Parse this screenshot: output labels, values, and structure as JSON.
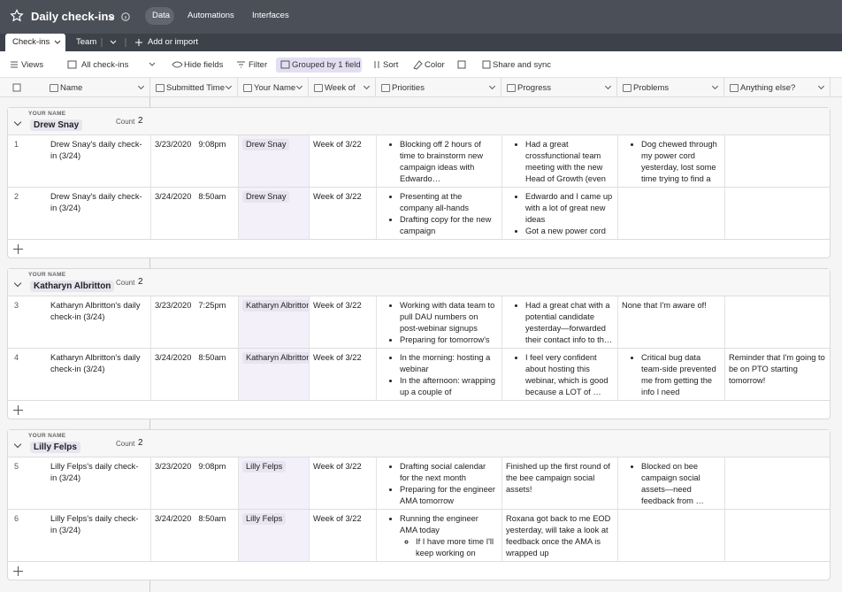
{
  "header": {
    "title": "Daily check-ins",
    "nav": [
      "Data",
      "Automations",
      "Interfaces"
    ]
  },
  "tabs": [
    "Check-ins",
    "Team"
  ],
  "add_import": "Add or import",
  "toolbar": [
    "Views",
    "All check-ins",
    "Hide fields",
    "Filter",
    "Grouped by 1 field",
    "Sort",
    "Color",
    "Share and sync"
  ],
  "columns": [
    "Name",
    "Submitted Time",
    "Your Name",
    "Week of",
    "Priorities",
    "Progress",
    "Problems",
    "Anything else?"
  ],
  "groups": [
    {
      "label": "YOUR NAME",
      "name": "Drew Snay",
      "count_label": "Count",
      "count": 2,
      "rows": [
        {
          "num": 1,
          "name": "Drew Snay's daily check-in (3/24)",
          "date": "3/23/2020",
          "time": "9:08pm",
          "your_name": "Drew Snay",
          "week_of": "Week of 3/22",
          "priorities": [
            "Blocking off 2 hours of time to brainstorm new campaign ideas with Edwardo…"
          ],
          "progress": [
            "Had a great crossfunctional team meeting with the new Head of Growth (even …"
          ],
          "problems": [
            "Dog chewed through my power cord yesterday, lost some time trying to find a …"
          ]
        },
        {
          "num": 2,
          "name": "Drew Snay's daily check-in (3/24)",
          "date": "3/24/2020",
          "time": "8:50am",
          "your_name": "Drew Snay",
          "week_of": "Week of 3/22",
          "priorities": [
            "Presenting at the company all-hands",
            "Drafting copy for the new campaign"
          ],
          "progress": [
            "Edwardo and I came up with a lot of great new ideas",
            "Got a new power cord …"
          ]
        }
      ]
    },
    {
      "label": "YOUR NAME",
      "name": "Katharyn Albritton",
      "count_label": "Count",
      "count": 2,
      "rows": [
        {
          "num": 3,
          "name": "Katharyn Albritton's daily check-in (3/24)",
          "date": "3/23/2020",
          "time": "7:25pm",
          "your_name": "Katharyn Albritton",
          "week_of": "Week of 3/22",
          "priorities": [
            "Working with data team to pull DAU numbers on post-webinar signups",
            "Preparing for tomorrow's …"
          ],
          "progress": [
            "Had a great chat with a potential candidate yesterday—forwarded their contact info to th…"
          ],
          "problems": "None that I'm aware of!"
        },
        {
          "num": 4,
          "name": "Katharyn Albritton's daily check-in (3/24)",
          "date": "3/24/2020",
          "time": "8:50am",
          "your_name": "Katharyn Albritton",
          "week_of": "Week of 3/22",
          "priorities": [
            "In the morning: hosting a webinar",
            "In the afternoon: wrapping up a couple of outstandin…"
          ],
          "progress": [
            "I feel very confident about hosting this webinar, which is good because a LOT of …"
          ],
          "problems": [
            "Critical bug data team-side prevented me from getting the info I need"
          ],
          "anything_else": "Reminder that I'm going to be on PTO starting tomorrow!"
        }
      ]
    },
    {
      "label": "YOUR NAME",
      "name": "Lilly Felps",
      "count_label": "Count",
      "count": 2,
      "rows": [
        {
          "num": 5,
          "name": "Lilly Felps's daily check-in (3/24)",
          "date": "3/23/2020",
          "time": "9:08pm",
          "your_name": "Lilly Felps",
          "week_of": "Week of 3/22",
          "priorities": [
            "Drafting social calendar for the next month",
            "Preparing for the engineer AMA tomorrow"
          ],
          "progress": "Finished up the first round of the bee campaign social assets!",
          "problems": [
            "Blocked on bee campaign social assets—need feedback from …"
          ]
        },
        {
          "num": 6,
          "name": "Lilly Felps's daily check-in (3/24)",
          "date": "3/24/2020",
          "time": "8:50am",
          "your_name": "Lilly Felps",
          "week_of": "Week of 3/22",
          "priorities": [
            {
              "text": "Running the engineer AMA today",
              "children": [
                "If I have more time I'll keep working on next…"
              ]
            }
          ],
          "progress": "Roxana got back to me EOD yesterday, will take a look at feedback once the AMA is wrapped up"
        }
      ]
    }
  ]
}
